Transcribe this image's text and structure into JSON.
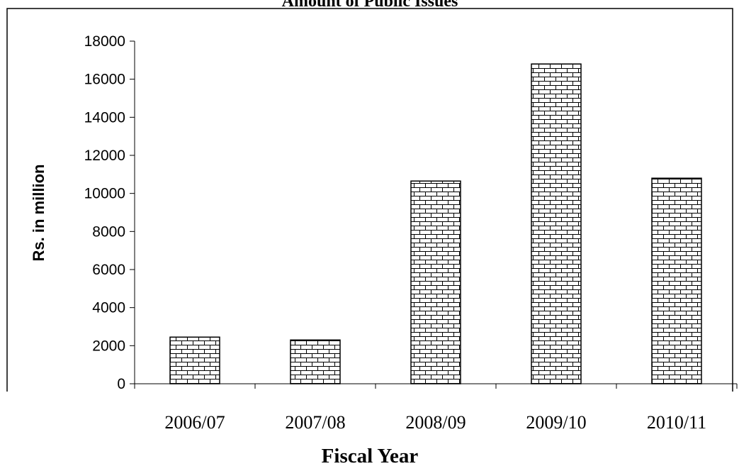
{
  "chart_data": {
    "type": "bar",
    "title": "Amount of Public Issues",
    "xlabel": "Fiscal Year",
    "ylabel": "Rs. in million",
    "categories": [
      "2006/07",
      "2007/08",
      "2008/09",
      "2009/10",
      "2010/11"
    ],
    "values": [
      2450,
      2300,
      10650,
      16800,
      10800
    ],
    "ylim": [
      0,
      18000
    ],
    "yticks": [
      0,
      2000,
      4000,
      6000,
      8000,
      10000,
      12000,
      14000,
      16000,
      18000
    ],
    "grid": false,
    "legend": "none",
    "bar_fill": "brick pattern",
    "colors": {
      "bar_pattern_stroke": "#000000",
      "bar_pattern_bg": "#ffffff",
      "axis": "#000000"
    }
  }
}
